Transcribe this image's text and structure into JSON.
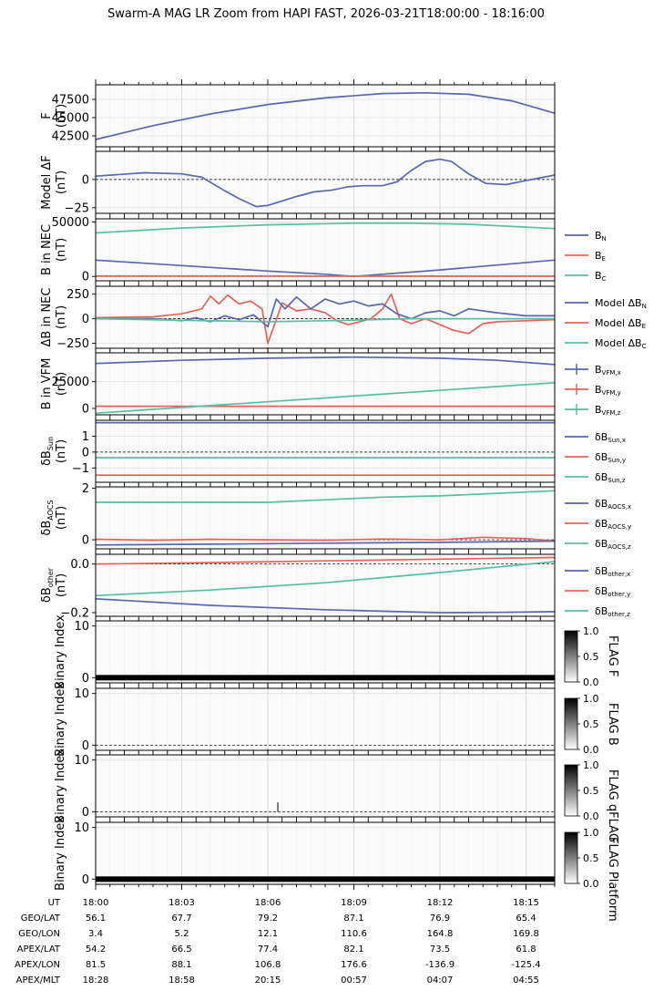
{
  "title": "Swarm-A MAG LR Zoom from HAPI FAST, 2026-03-21T18:00:00 - 18:16:00",
  "chart_data": {
    "type": "line",
    "x_unit": "minutes after 18:00 UT",
    "xlim": [
      0,
      16
    ],
    "colors": {
      "blue": "#5a67ae",
      "red": "#e8625a",
      "teal": "#57bfa4"
    },
    "panels": [
      {
        "id": "F",
        "ylabel": [
          "F",
          "(nT)"
        ],
        "ylim": [
          41000,
          49500
        ],
        "ticks": [
          42500,
          45000,
          47500
        ],
        "tick_labels": [
          "42500",
          "45000",
          "47500"
        ],
        "zero_line": false,
        "series": [
          {
            "color": "blue",
            "x": [
              0,
              2,
              4,
              6,
              8,
              10,
              11.5,
              13,
              14.5,
              16
            ],
            "y": [
              42000,
              43900,
              45500,
              46800,
              47700,
              48300,
              48400,
              48200,
              47300,
              45600
            ]
          }
        ]
      },
      {
        "id": "ModelDF",
        "ylabel": [
          "Model ΔF",
          "(nT)"
        ],
        "ylim": [
          -30,
          25
        ],
        "ticks": [
          -25,
          0
        ],
        "tick_labels": [
          "−25",
          "0"
        ],
        "zero_line": true,
        "series": [
          {
            "color": "blue",
            "x": [
              0,
              1.7,
              3,
              3.7,
              4.5,
              5,
              5.6,
              6,
              6.5,
              7,
              7.6,
              8.2,
              8.8,
              9.3,
              10,
              10.5,
              11,
              11.5,
              12,
              12.4,
              13,
              13.6,
              14.3,
              15,
              16
            ],
            "y": [
              3,
              6,
              5,
              2,
              -10,
              -17,
              -24,
              -23,
              -19,
              -15,
              -11,
              -9.5,
              -6.5,
              -5.5,
              -5.5,
              -2,
              8,
              16,
              18,
              16,
              5,
              -3.5,
              -4.5,
              -1,
              4
            ]
          }
        ]
      },
      {
        "id": "BNEC",
        "ylabel": [
          "B in NEC",
          "(nT)"
        ],
        "ylim": [
          -4000,
          53000
        ],
        "ticks": [
          0,
          50000
        ],
        "tick_labels": [
          "0",
          "50000"
        ],
        "zero_line": true,
        "legend": [
          "B<tspan font-size='7' dy='2'>N</tspan>",
          "B<tspan font-size='7' dy='2'>E</tspan>",
          "B<tspan font-size='7' dy='2'>C</tspan>"
        ],
        "series": [
          {
            "color": "blue",
            "x": [
              0,
              3,
              6,
              8,
              9,
              10,
              12,
              14,
              16
            ],
            "y": [
              15000,
              10000,
              5000,
              2000,
              0,
              2000,
              6000,
              10500,
              15000
            ]
          },
          {
            "color": "red",
            "x": [
              0,
              16
            ],
            "y": [
              400,
              300
            ]
          },
          {
            "color": "teal",
            "x": [
              0,
              3,
              6,
              9,
              11,
              13,
              16
            ],
            "y": [
              40000,
              44500,
              47500,
              49000,
              49000,
              48000,
              44000
            ]
          }
        ]
      },
      {
        "id": "DBNEC",
        "ylabel": [
          "ΔB in NEC",
          "(nT)"
        ],
        "ylim": [
          -300,
          330
        ],
        "ticks": [
          -250,
          0,
          250
        ],
        "tick_labels": [
          "−250",
          "0",
          "250"
        ],
        "zero_line": true,
        "legend": [
          "Model ΔB<tspan font-size='7' dy='2'>N</tspan>",
          "Model ΔB<tspan font-size='7' dy='2'>E</tspan>",
          "Model ΔB<tspan font-size='7' dy='2'>C</tspan>"
        ],
        "series": [
          {
            "color": "red",
            "x": [
              0,
              2,
              3,
              3.7,
              4,
              4.3,
              4.6,
              5,
              5.4,
              5.8,
              6,
              6.5,
              7,
              7.5,
              8,
              8.4,
              8.8,
              9.2,
              9.6,
              10,
              10.3,
              10.6,
              11,
              11.5,
              12,
              12.5,
              13,
              13.5,
              14,
              15,
              16
            ],
            "y": [
              10,
              20,
              50,
              100,
              230,
              150,
              240,
              150,
              180,
              100,
              -250,
              160,
              80,
              100,
              60,
              -20,
              -60,
              -30,
              0,
              100,
              250,
              0,
              -50,
              0,
              -60,
              -120,
              -150,
              -50,
              -30,
              -20,
              -10
            ]
          },
          {
            "color": "blue",
            "x": [
              0,
              2,
              3,
              3.5,
              4,
              4.5,
              5,
              5.5,
              6,
              6.3,
              6.6,
              7,
              7.5,
              8,
              8.5,
              9,
              9.5,
              10,
              10.5,
              11,
              11.5,
              12,
              12.5,
              13,
              14,
              15,
              16
            ],
            "y": [
              0,
              0,
              -20,
              10,
              -30,
              30,
              -10,
              40,
              -80,
              200,
              100,
              220,
              100,
              200,
              150,
              180,
              130,
              150,
              50,
              0,
              60,
              80,
              30,
              100,
              60,
              30,
              30
            ]
          },
          {
            "color": "teal",
            "x": [
              0,
              6,
              8,
              11,
              16
            ],
            "y": [
              0,
              -30,
              -20,
              0,
              0
            ]
          }
        ]
      },
      {
        "id": "BVFM",
        "ylabel": [
          "B in VFM",
          "(nT)"
        ],
        "ylim": [
          -6000,
          52000
        ],
        "ticks": [
          0,
          25000
        ],
        "tick_labels": [
          "0",
          "25000"
        ],
        "zero_line": false,
        "legend": [
          "B<tspan font-size='7' dy='2'>VFM,x</tspan>",
          "B<tspan font-size='7' dy='2'>VFM,y</tspan>",
          "B<tspan font-size='7' dy='2'>VFM,z</tspan>"
        ],
        "legend_marker": "errorbar",
        "series": [
          {
            "color": "blue",
            "x": [
              0,
              3,
              6,
              9,
              12,
              14,
              16
            ],
            "y": [
              42000,
              45000,
              47000,
              48000,
              47000,
              45000,
              41000
            ]
          },
          {
            "color": "red",
            "x": [
              0,
              16
            ],
            "y": [
              2000,
              2000
            ]
          },
          {
            "color": "teal",
            "x": [
              0,
              16
            ],
            "y": [
              -4500,
              24000
            ]
          }
        ]
      },
      {
        "id": "DBSun",
        "ylabel": [
          "δB<tspan font-size='8' dy='3'>Sun</tspan>",
          "(nT)"
        ],
        "ylim": [
          -1.9,
          2.0
        ],
        "ticks": [
          -1,
          0,
          1
        ],
        "tick_labels": [
          "−1",
          "0",
          "1"
        ],
        "zero_line": true,
        "legend": [
          "δB<tspan font-size='7' dy='2'>Sun,x</tspan>",
          "δB<tspan font-size='7' dy='2'>Sun,y</tspan>",
          "δB<tspan font-size='7' dy='2'>Sun,z</tspan>"
        ],
        "series": [
          {
            "color": "blue",
            "x": [
              0,
              16
            ],
            "y": [
              1.85,
              1.85
            ]
          },
          {
            "color": "red",
            "x": [
              0,
              16
            ],
            "y": [
              -1.45,
              -1.45
            ]
          },
          {
            "color": "teal",
            "x": [
              0,
              16
            ],
            "y": [
              -0.35,
              -0.35
            ]
          }
        ]
      },
      {
        "id": "DBAOCS",
        "ylabel": [
          "δB<tspan font-size='8' dy='3'>AOCS</tspan>",
          "(nT)"
        ],
        "ylim": [
          -0.35,
          2.05
        ],
        "ticks": [
          0,
          2
        ],
        "tick_labels": [
          "0",
          "2"
        ],
        "zero_line": true,
        "legend": [
          "δB<tspan font-size='7' dy='2'>AOCS,x</tspan>",
          "δB<tspan font-size='7' dy='2'>AOCS,y</tspan>",
          "δB<tspan font-size='7' dy='2'>AOCS,z</tspan>"
        ],
        "series": [
          {
            "color": "teal",
            "x": [
              0,
              6,
              8,
              10,
              12,
              14,
              16
            ],
            "y": [
              1.45,
              1.45,
              1.55,
              1.65,
              1.7,
              1.8,
              1.9
            ]
          },
          {
            "color": "red",
            "x": [
              0,
              2,
              4,
              6,
              8,
              10,
              12,
              13.5,
              14,
              15,
              16
            ],
            "y": [
              0.02,
              -0.02,
              0.02,
              0,
              -0.02,
              0.03,
              0,
              0.1,
              0.08,
              0.05,
              -0.05
            ]
          },
          {
            "color": "blue",
            "x": [
              0,
              4,
              8,
              12,
              16
            ],
            "y": [
              -0.2,
              -0.17,
              -0.13,
              -0.1,
              -0.05
            ]
          }
        ]
      },
      {
        "id": "DBother",
        "ylabel": [
          "δB<tspan font-size='8' dy='3'>other</tspan>",
          "(nT)"
        ],
        "ylim": [
          -0.215,
          0.04
        ],
        "ticks": [
          -0.2,
          0.0
        ],
        "tick_labels": [
          "−0.2",
          "0.0"
        ],
        "zero_line": true,
        "legend": [
          "δB<tspan font-size='7' dy='2'>other,x</tspan>",
          "δB<tspan font-size='7' dy='2'>other,y</tspan>",
          "δB<tspan font-size='7' dy='2'>other,z</tspan>"
        ],
        "series": [
          {
            "color": "blue",
            "x": [
              0,
              4,
              8,
              12,
              14,
              16
            ],
            "y": [
              -0.143,
              -0.17,
              -0.188,
              -0.2,
              -0.199,
              -0.196
            ]
          },
          {
            "color": "red",
            "x": [
              0,
              4,
              8,
              12,
              16
            ],
            "y": [
              0.0,
              0.006,
              0.013,
              0.02,
              0.027
            ]
          },
          {
            "color": "teal",
            "x": [
              0,
              4,
              8,
              12,
              16
            ],
            "y": [
              -0.13,
              -0.107,
              -0.077,
              -0.035,
              0.01
            ]
          }
        ]
      },
      {
        "id": "FlagF",
        "ylabel": [
          "Binary Index"
        ],
        "ylim": [
          -1,
          11
        ],
        "ticks": [
          0,
          10
        ],
        "tick_labels": [
          "0",
          "10"
        ],
        "zero_line": true,
        "flag": {
          "label": "FLAG F",
          "band": true,
          "spikes": []
        }
      },
      {
        "id": "FlagB",
        "ylabel": [
          "Binary Index"
        ],
        "ylim": [
          -1,
          11
        ],
        "ticks": [
          0,
          10
        ],
        "tick_labels": [
          "0",
          "10"
        ],
        "zero_line": true,
        "flag": {
          "label": "FLAG B",
          "band": false,
          "spikes": []
        }
      },
      {
        "id": "FlagQ",
        "ylabel": [
          "Binary Index"
        ],
        "ylim": [
          -1,
          11
        ],
        "ticks": [
          0,
          10
        ],
        "tick_labels": [
          "0",
          "10"
        ],
        "zero_line": true,
        "flag": {
          "label": "FLAG qFLAG",
          "band": false,
          "spikes": [
            6.35
          ]
        }
      },
      {
        "id": "FlagP",
        "ylabel": [
          "Binary Index"
        ],
        "ylim": [
          -1,
          11
        ],
        "ticks": [
          0,
          10
        ],
        "tick_labels": [
          "0",
          "10"
        ],
        "zero_line": true,
        "flag": {
          "label": "FLAG Platform",
          "band": true,
          "spikes": []
        }
      }
    ],
    "colorbar_ticks": [
      "0.0",
      "0.5",
      "1.0"
    ],
    "x_ticks": [
      0,
      3,
      6,
      9,
      12,
      15
    ],
    "ephemeris": {
      "rows": [
        {
          "label": "UT",
          "values": [
            "18:00",
            "18:03",
            "18:06",
            "18:09",
            "18:12",
            "18:15"
          ]
        },
        {
          "label": "GEO/LAT",
          "values": [
            "56.1",
            "67.7",
            "79.2",
            "87.1",
            "76.9",
            "65.4"
          ]
        },
        {
          "label": "GEO/LON",
          "values": [
            "3.4",
            "5.2",
            "12.1",
            "110.6",
            "164.8",
            "169.8"
          ]
        },
        {
          "label": "APEX/LAT",
          "values": [
            "54.2",
            "66.5",
            "77.4",
            "82.1",
            "73.5",
            "61.8"
          ]
        },
        {
          "label": "APEX/LON",
          "values": [
            "81.5",
            "88.1",
            "106.8",
            "176.6",
            "-136.9",
            "-125.4"
          ]
        },
        {
          "label": "APEX/MLT",
          "values": [
            "18:28",
            "18:58",
            "20:15",
            "00:57",
            "04:07",
            "04:55"
          ]
        }
      ]
    }
  }
}
